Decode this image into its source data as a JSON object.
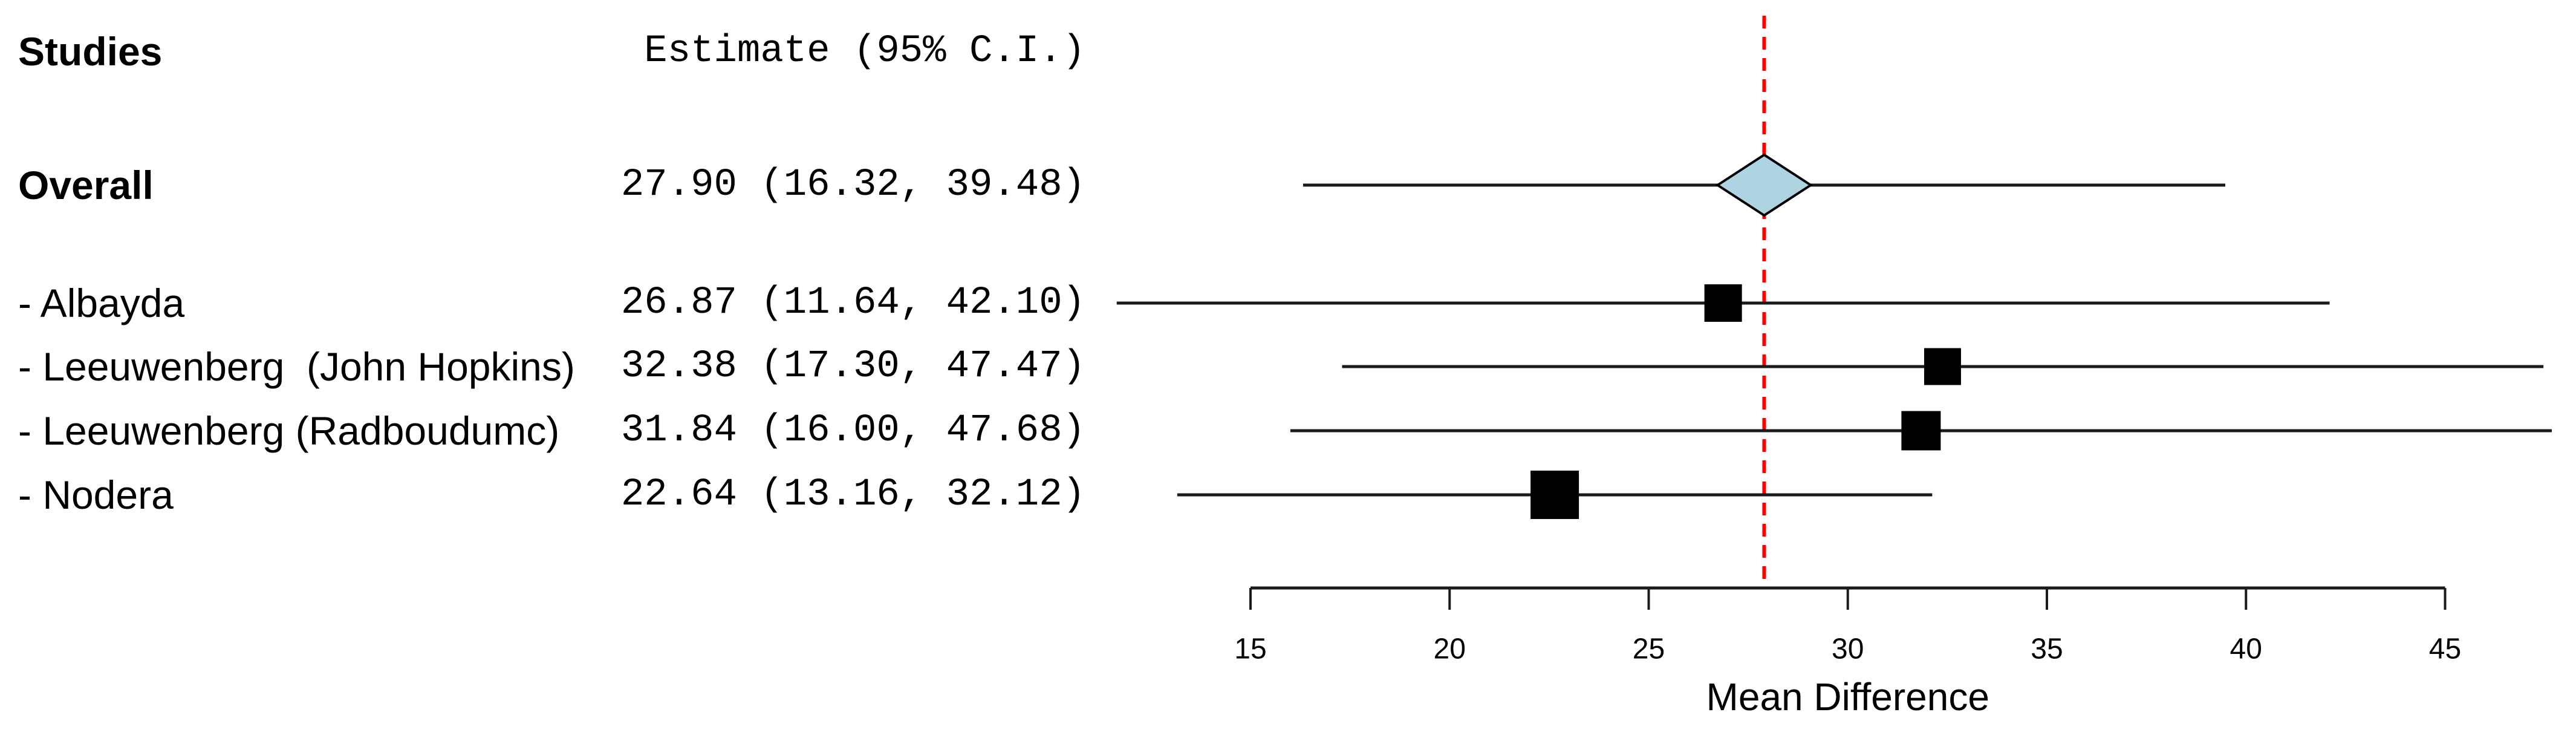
{
  "columns": {
    "studies_header": "Studies",
    "estimate_header": "Estimate (95% C.I.)"
  },
  "chart_data": {
    "type": "scatter",
    "variant": "forest-plot",
    "title": "",
    "xlabel": "Mean Difference",
    "xlim": [
      15,
      45
    ],
    "xticks": [
      15,
      20,
      25,
      30,
      35,
      40,
      45
    ],
    "grid": false,
    "legend": false,
    "reference_line": 27.9,
    "rows": [
      {
        "kind": "overall",
        "label": "Overall",
        "estimate_text": "27.90 (16.32, 39.48)",
        "estimate": 27.9,
        "ci_low": 16.32,
        "ci_high": 39.48
      },
      {
        "kind": "study",
        "label": "- Albayda",
        "estimate_text": "26.87 (11.64, 42.10)",
        "estimate": 26.87,
        "ci_low": 11.64,
        "ci_high": 42.1,
        "marker_size": 62
      },
      {
        "kind": "study",
        "label": "- Leeuwenberg  (John Hopkins)",
        "estimate_text": "32.38 (17.30, 47.47)",
        "estimate": 32.38,
        "ci_low": 17.3,
        "ci_high": 47.47,
        "marker_size": 61
      },
      {
        "kind": "study",
        "label": "- Leeuwenberg (Radboudumc)",
        "estimate_text": "31.84 (16.00, 47.68)",
        "estimate": 31.84,
        "ci_low": 16.0,
        "ci_high": 47.68,
        "marker_size": 65
      },
      {
        "kind": "study",
        "label": "- Nodera",
        "estimate_text": "22.64 (13.16, 32.12)",
        "estimate": 22.64,
        "ci_low": 13.16,
        "ci_high": 32.12,
        "marker_size": 80
      }
    ],
    "colors": {
      "marker": "#000000",
      "ci_line": "#1b1b1b",
      "diamond_fill": "#aed4e2",
      "diamond_border": "#000000",
      "reference_line": "#ff0000",
      "axis": "#1b1b1b",
      "text": "#000000"
    }
  }
}
